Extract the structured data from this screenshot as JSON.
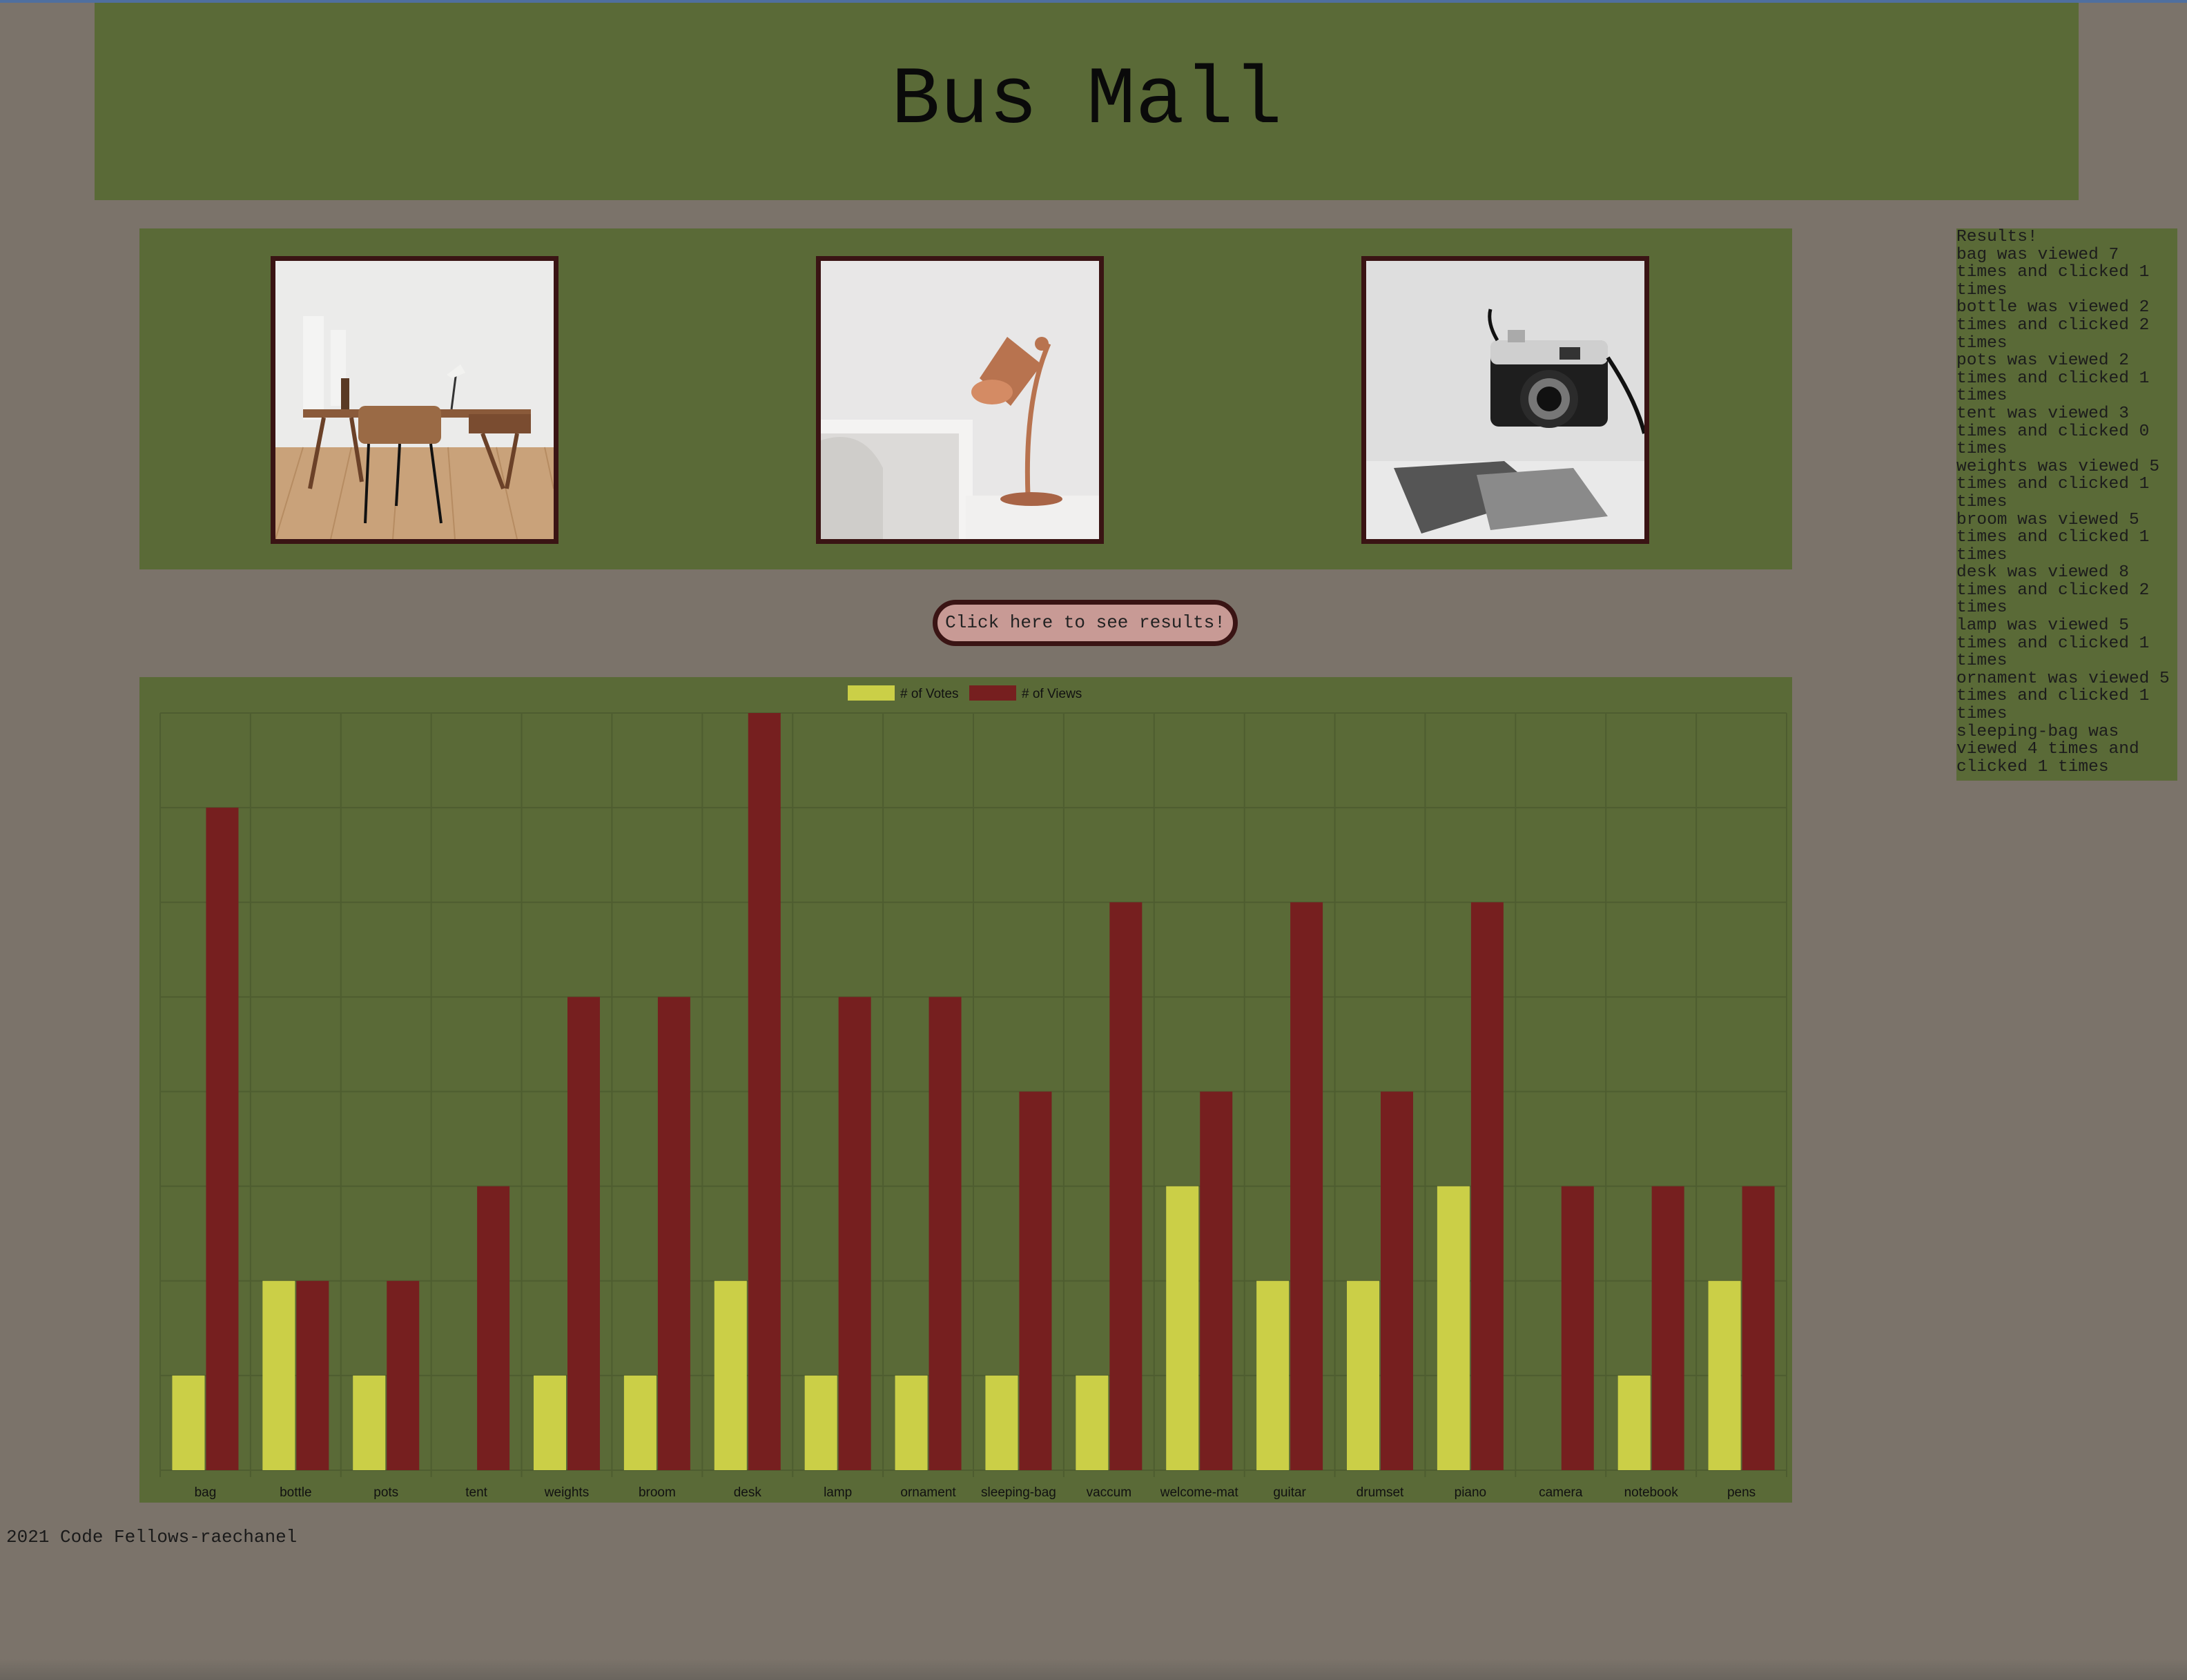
{
  "header": {
    "title": "Bus Mall"
  },
  "products": [
    {
      "name": "desk",
      "icon": "desk-photo"
    },
    {
      "name": "lamp",
      "icon": "lamp-photo"
    },
    {
      "name": "camera",
      "icon": "camera-photo"
    }
  ],
  "results_button": {
    "label": "Click here to see results!"
  },
  "results": {
    "heading": "Results!",
    "items": [
      "bag was viewed 7 times and clicked 1 times",
      "bottle was viewed 2 times and clicked 2 times",
      "pots was viewed 2 times and clicked 1 times",
      "tent was viewed 3 times and clicked 0 times",
      "weights was viewed 5 times and clicked 1 times",
      "broom was viewed 5 times and clicked 1 times",
      "desk was viewed 8 times and clicked 2 times",
      "lamp was viewed 5 times and clicked 1 times",
      "ornament was viewed 5 times and clicked 1 times",
      "sleeping-bag was viewed 4 times and clicked 1 times"
    ]
  },
  "colors": {
    "background": "#7b736a",
    "panel": "#5a6a37",
    "votes": "#cbcf47",
    "views": "#761f1f",
    "frame": "#3a1414",
    "button": "#c89a95"
  },
  "chart_data": {
    "type": "bar",
    "categories": [
      "bag",
      "bottle",
      "pots",
      "tent",
      "weights",
      "broom",
      "desk",
      "lamp",
      "ornament",
      "sleeping-bag",
      "vaccum",
      "welcome-mat",
      "guitar",
      "drumset",
      "piano",
      "camera",
      "notebook",
      "pens"
    ],
    "series": [
      {
        "name": "# of Votes",
        "color": "#cbcf47",
        "values": [
          1,
          2,
          1,
          0,
          1,
          1,
          2,
          1,
          1,
          1,
          1,
          3,
          2,
          2,
          3,
          0,
          1,
          2
        ]
      },
      {
        "name": "# of Views",
        "color": "#761f1f",
        "values": [
          7,
          2,
          2,
          3,
          5,
          5,
          8,
          5,
          5,
          4,
          6,
          4,
          6,
          4,
          6,
          3,
          3,
          3
        ]
      }
    ],
    "ylim": [
      0,
      8
    ],
    "grid": true,
    "legend": "top-center"
  },
  "footer": {
    "text": "2021 Code Fellows-raechanel"
  }
}
